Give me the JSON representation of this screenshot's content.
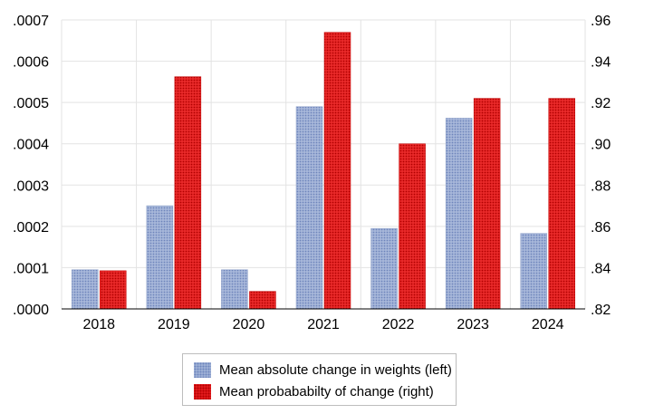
{
  "chart_data": {
    "type": "bar",
    "categories": [
      "2018",
      "2019",
      "2020",
      "2021",
      "2022",
      "2023",
      "2024"
    ],
    "series": [
      {
        "name": "Mean absolute change in weights (left)",
        "axis": "left",
        "color": "#9fb1d6",
        "values": [
          9.5e-05,
          0.00025,
          9.5e-05,
          0.00049,
          0.000195,
          0.000462,
          0.000183
        ]
      },
      {
        "name": "Mean probababilty of change (right)",
        "axis": "right",
        "color": "#e31a1c",
        "values": [
          0.8385,
          0.9325,
          0.8285,
          0.954,
          0.9,
          0.922,
          0.922
        ]
      }
    ],
    "left_axis": {
      "ylim": [
        0,
        0.0007
      ],
      "tick_values": [
        0,
        0.0001,
        0.0002,
        0.0003,
        0.0004,
        0.0005,
        0.0006,
        0.0007
      ],
      "tick_labels": [
        ".0000",
        ".0001",
        ".0002",
        ".0003",
        ".0004",
        ".0005",
        ".0006",
        ".0007"
      ]
    },
    "right_axis": {
      "ylim": [
        0.82,
        0.96
      ],
      "tick_values": [
        0.82,
        0.84,
        0.86,
        0.88,
        0.9,
        0.92,
        0.94,
        0.96
      ],
      "tick_labels": [
        ".82",
        ".84",
        ".86",
        ".88",
        ".90",
        ".92",
        ".94",
        ".96"
      ]
    },
    "grid": true,
    "legend_position": "bottom"
  }
}
